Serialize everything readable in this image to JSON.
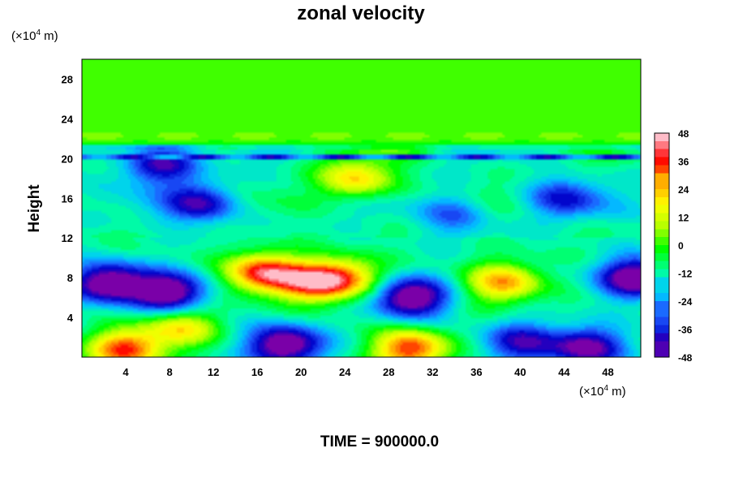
{
  "chart_data": {
    "type": "heatmap",
    "title": "zonal velocity",
    "ylabel": "Height",
    "xlabel": "",
    "y_unit": "(×10",
    "x_unit": "(×10",
    "unit_exponent": "4",
    "unit_suffix": " m)",
    "xlim": [
      0,
      51
    ],
    "ylim": [
      0,
      30
    ],
    "x_ticks": [
      4,
      8,
      12,
      16,
      20,
      24,
      28,
      32,
      36,
      40,
      44,
      48
    ],
    "y_ticks": [
      4,
      8,
      12,
      16,
      20,
      24,
      28
    ],
    "colorbar": {
      "min": -48,
      "max": 48,
      "ticks": [
        48,
        36,
        24,
        12,
        0,
        -12,
        -24,
        -36,
        -48
      ],
      "colormap": [
        "#7a00a8",
        "#0000c8",
        "#1e5aff",
        "#00c8ff",
        "#00ffa0",
        "#00ff00",
        "#b4ff00",
        "#ffff00",
        "#ffa000",
        "#ff0000",
        "#ffbcc8"
      ]
    },
    "features": [
      {
        "x": 2.5,
        "y": 7.5,
        "value": -48
      },
      {
        "x": 8.0,
        "y": 6.5,
        "value": -46
      },
      {
        "x": 21.0,
        "y": 7.5,
        "value": 40
      },
      {
        "x": 16.5,
        "y": 8.5,
        "value": 50
      },
      {
        "x": 30.0,
        "y": 6.0,
        "value": -48
      },
      {
        "x": 38.5,
        "y": 7.5,
        "value": 38
      },
      {
        "x": 50.5,
        "y": 8.0,
        "value": -46
      },
      {
        "x": 30.0,
        "y": 0.8,
        "value": 48
      },
      {
        "x": 4.0,
        "y": 0.8,
        "value": 46
      },
      {
        "x": 18.5,
        "y": 1.2,
        "value": -48
      },
      {
        "x": 9.0,
        "y": 3.0,
        "value": 30
      },
      {
        "x": 25.0,
        "y": 17.8,
        "value": 34
      },
      {
        "x": 11.0,
        "y": 15.5,
        "value": -34
      },
      {
        "x": 7.0,
        "y": 19.5,
        "value": -36
      },
      {
        "x": 34.0,
        "y": 14.5,
        "value": -20
      },
      {
        "x": 44.0,
        "y": 16.0,
        "value": -24
      },
      {
        "x": 24.0,
        "y": 8.0,
        "value": 36
      },
      {
        "x": 46.0,
        "y": 1.0,
        "value": -40
      },
      {
        "x": 28.0,
        "y": 22.0,
        "value": 10
      },
      {
        "x": 40.0,
        "y": 1.5,
        "value": -30
      }
    ]
  },
  "footer": {
    "time_label": "TIME = 900000.0"
  }
}
